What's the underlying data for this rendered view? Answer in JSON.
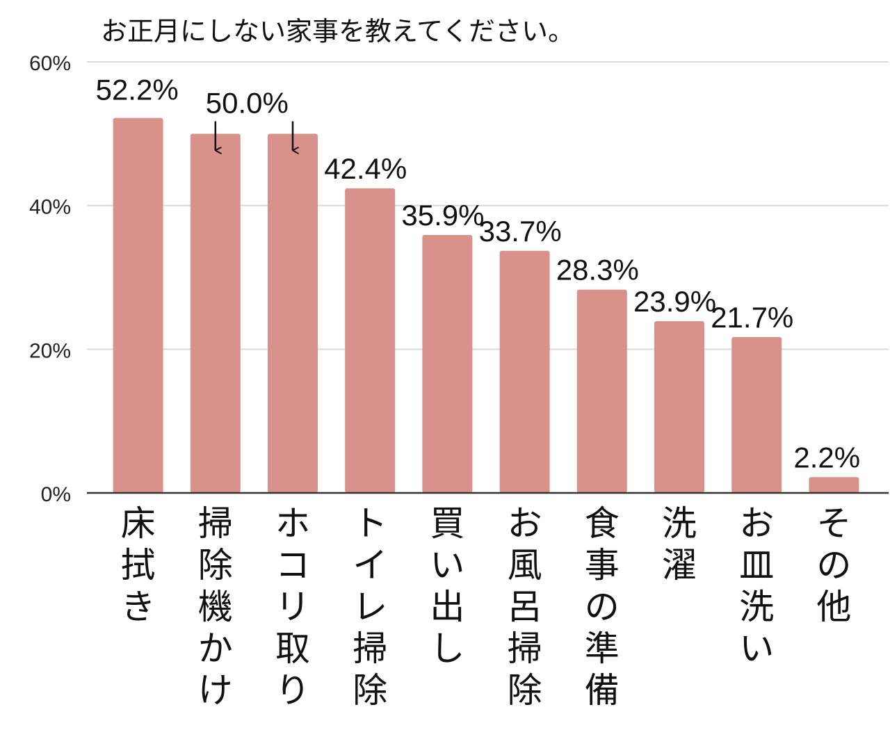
{
  "chart_data": {
    "type": "bar",
    "title": "お正月にしない家事を教えてください。",
    "categories": [
      "床拭き",
      "掃除機かけ",
      "ホコリ取り",
      "トイレ掃除",
      "買い出し",
      "お風呂掃除",
      "食事の準備",
      "洗濯",
      "お皿洗い",
      "その他"
    ],
    "values": [
      52.2,
      50.0,
      50.0,
      42.4,
      35.9,
      33.7,
      28.3,
      23.9,
      21.7,
      2.2
    ],
    "data_labels": [
      "52.2%",
      "50.0%",
      "",
      "42.4%",
      "35.9%",
      "33.7%",
      "28.3%",
      "23.9%",
      "21.7%",
      "2.2%"
    ],
    "y_ticks": [
      0,
      20,
      40,
      60
    ],
    "y_tick_labels": [
      "0%",
      "20%",
      "40%",
      "60%"
    ],
    "ylim": [
      0,
      60
    ],
    "grid": true,
    "bar_color": "#d9918b",
    "axis_color": "#333333",
    "grid_color": "#d9d9d9",
    "annotations": [
      "arrow pointing from 50.0% label down to bars 2 and 3"
    ]
  }
}
